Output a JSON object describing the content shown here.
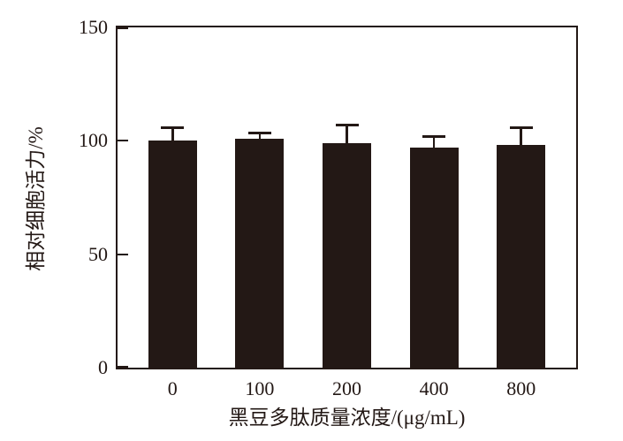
{
  "chart_data": {
    "type": "bar",
    "title": "",
    "categories": [
      "0",
      "100",
      "200",
      "400",
      "800"
    ],
    "values": [
      100,
      101,
      99,
      97,
      98
    ],
    "errors_upper": [
      6,
      2.5,
      8,
      5,
      8
    ],
    "series_name": "相对细胞活力",
    "xlabel": "黑豆多肽质量浓度/(μg/mL)",
    "ylabel": "相对细胞活力/%",
    "ylim": [
      0,
      150
    ],
    "yticks": [
      0,
      50,
      100,
      150
    ],
    "ytick_labels": [
      "0",
      "50",
      "100",
      "150"
    ],
    "grid": false,
    "legend_position": "none",
    "error_bar_style": "upper only, capped",
    "bar_color": "#231815",
    "axis_color": "#231815",
    "text_color": "#231815",
    "background_color": "#ffffff"
  }
}
